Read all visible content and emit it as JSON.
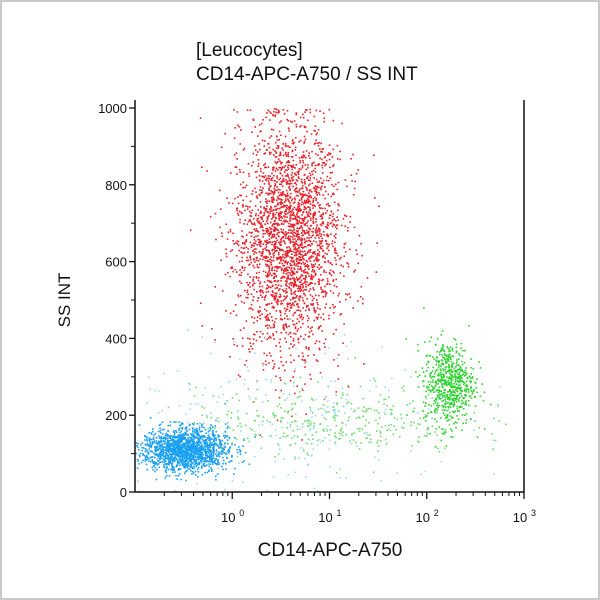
{
  "chart_data": {
    "type": "scatter",
    "title": "[Leucocytes]",
    "subtitle": "CD14-APC-A750 / SS INT",
    "xlabel": "CD14-APC-A750",
    "ylabel": "SS INT",
    "xscale": "log",
    "xlim": [
      0.1,
      1000
    ],
    "ylim": [
      0,
      1000
    ],
    "xticks": [
      {
        "value": 1,
        "label": "10",
        "exp": "0"
      },
      {
        "value": 10,
        "label": "10",
        "exp": "1"
      },
      {
        "value": 100,
        "label": "10",
        "exp": "2"
      },
      {
        "value": 1000,
        "label": "10",
        "exp": "3"
      }
    ],
    "yticks": [
      0,
      200,
      400,
      600,
      800,
      1000
    ],
    "grid": false,
    "populations": [
      {
        "color": "#e8202a",
        "x_log10_mean": 0.58,
        "x_log10_sd": 0.27,
        "y_mean": 660,
        "y_sd": 150,
        "count": 2600
      },
      {
        "color": "#1aa0f0",
        "x_log10_mean": -0.5,
        "x_log10_sd": 0.22,
        "y_mean": 112,
        "y_sd": 28,
        "count": 1600
      },
      {
        "color": "#2ed22e",
        "x_log10_mean": 2.22,
        "x_log10_sd": 0.13,
        "y_mean": 285,
        "y_sd": 55,
        "count": 650
      },
      {
        "color": "#6fdc6f",
        "x_log10_mean": 1.0,
        "x_log10_sd": 0.7,
        "y_mean": 190,
        "y_sd": 45,
        "count": 350
      },
      {
        "color": "#9fd8f5",
        "x_log10_mean": 0.6,
        "x_log10_sd": 0.9,
        "y_mean": 200,
        "y_sd": 110,
        "count": 250
      }
    ]
  }
}
